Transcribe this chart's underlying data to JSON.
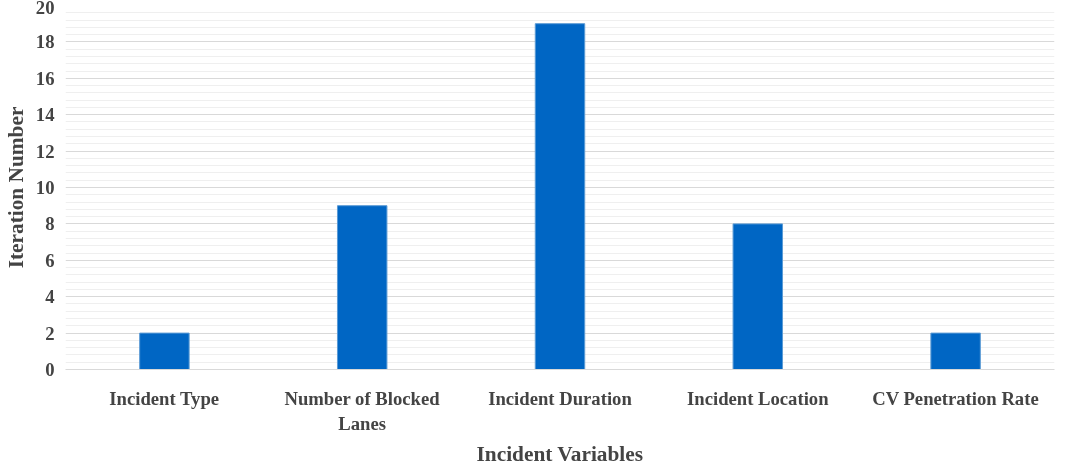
{
  "chart_data": {
    "type": "bar",
    "xlabel": "Incident Variables",
    "ylabel": "Iteration Number",
    "categories": [
      "Incident Type",
      "Number of Blocked Lanes",
      "Incident Duration",
      "Incident Location",
      "CV Penetration Rate"
    ],
    "values": [
      2,
      9,
      19,
      8,
      2
    ],
    "color": "#0066c4",
    "ylim": [
      0,
      20
    ],
    "yticks": [
      0,
      2,
      4,
      6,
      8,
      10,
      12,
      14,
      16,
      18,
      20
    ],
    "grid": "y"
  }
}
